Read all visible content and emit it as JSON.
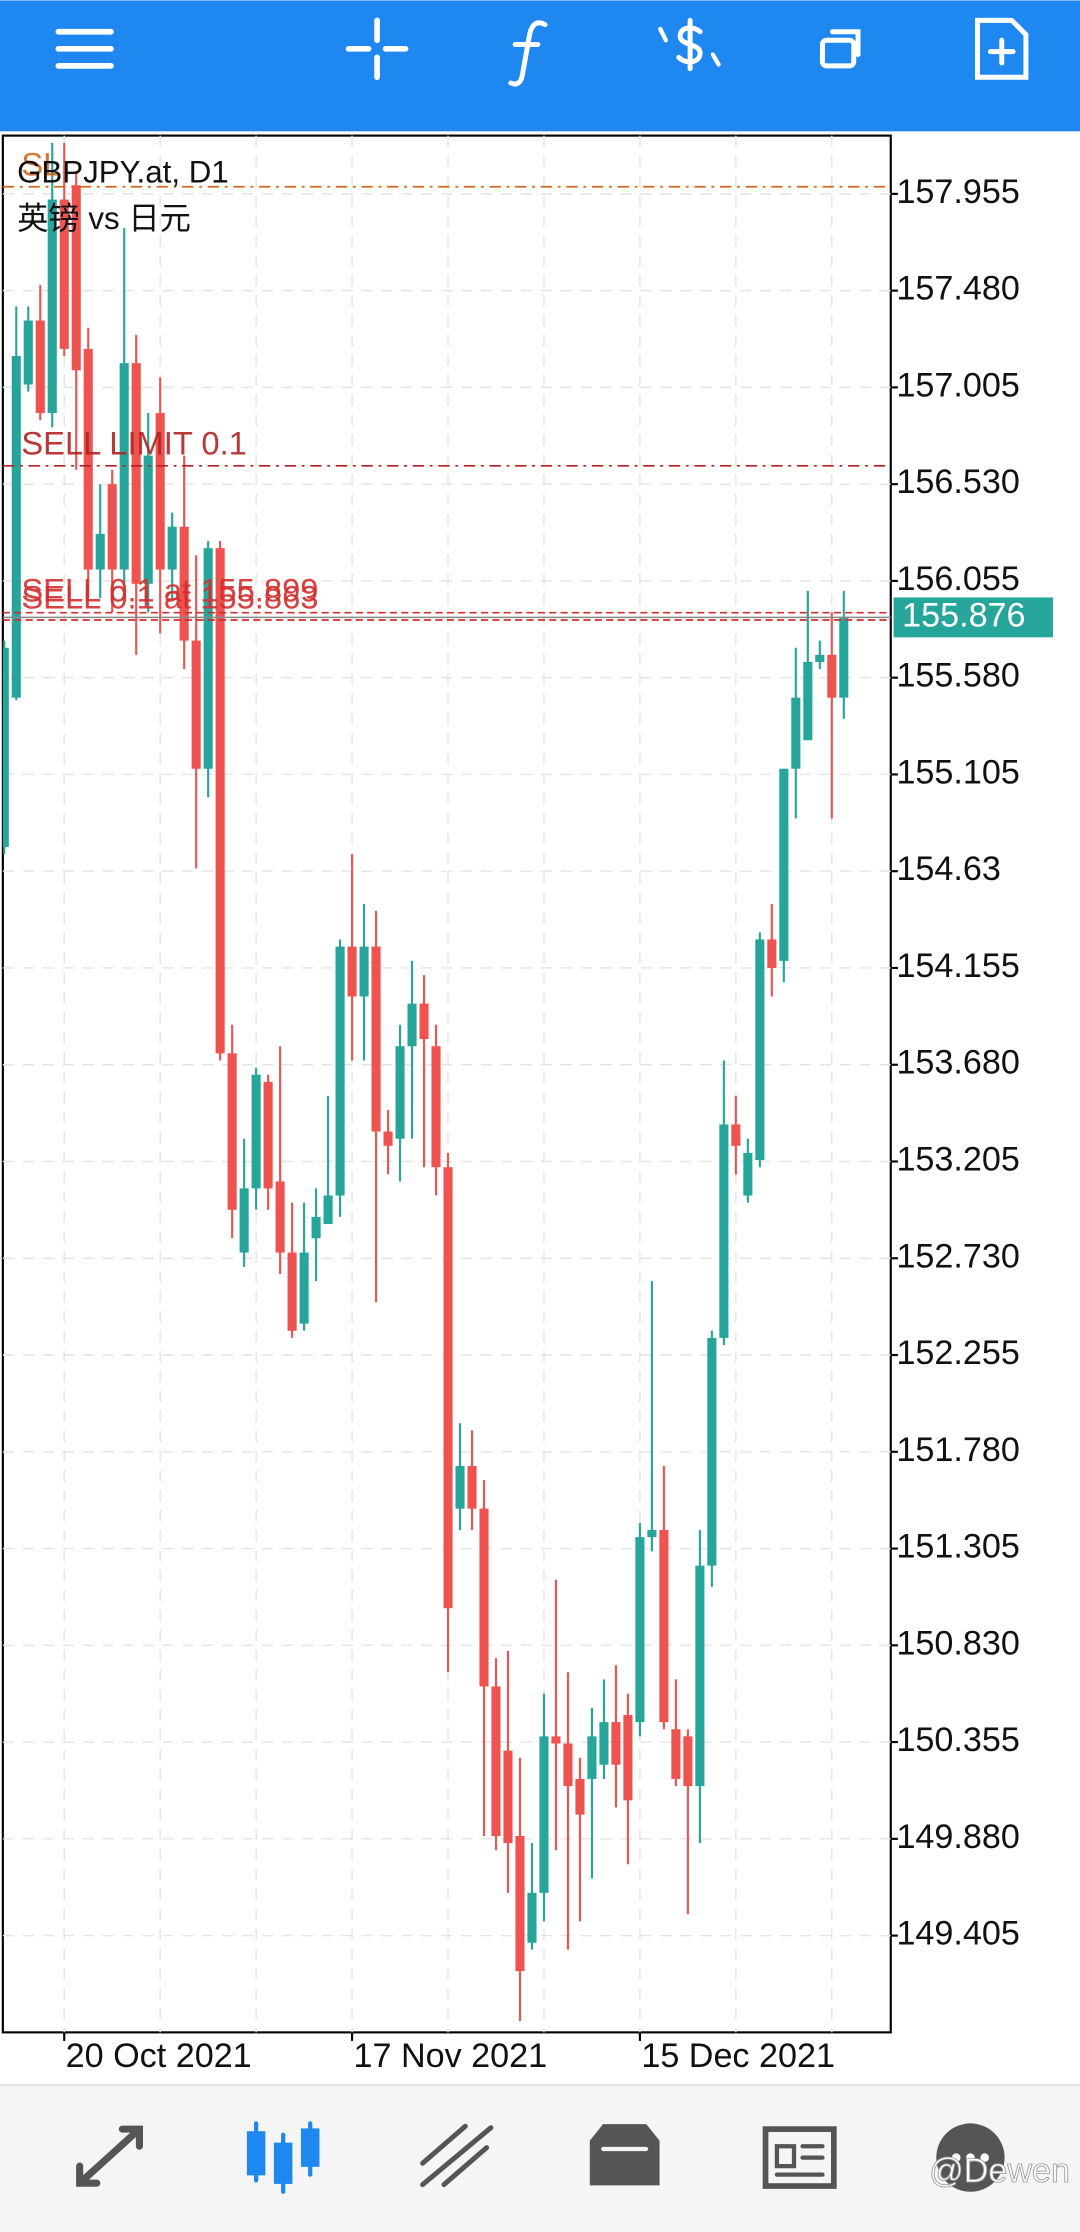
{
  "chart_data": {
    "type": "candlestick",
    "title": "GBPJPY.at, D1",
    "subtitle": "英镑 vs 日元",
    "categories": [
      null,
      null,
      null,
      null,
      null,
      "20 Oct 2021",
      null,
      null,
      null,
      null,
      null,
      null,
      null,
      null,
      null,
      null,
      null,
      null,
      null,
      null,
      null,
      null,
      null,
      null,
      null,
      null,
      null,
      null,
      null,
      "17 Nov 2021",
      null,
      null,
      null,
      null,
      null,
      null,
      null,
      null,
      null,
      null,
      null,
      null,
      null,
      null,
      null,
      null,
      null,
      null,
      null,
      null,
      null,
      null,
      null,
      "15 Dec 2021",
      null,
      null,
      null,
      null,
      null,
      null,
      null,
      null,
      null,
      null,
      null,
      null,
      null,
      null,
      null,
      null,
      null
    ],
    "open": [
      154.749,
      155.482,
      157.019,
      157.333,
      156.879,
      157.927,
      157.997,
      157.194,
      156.111,
      156.53,
      156.111,
      157.124,
      156.041,
      156.879,
      156.111,
      156.321,
      155.762,
      155.133,
      156.216,
      153.736,
      152.758,
      153.073,
      153.596,
      153.107,
      152.758,
      152.409,
      152.828,
      152.898,
      153.038,
      154.26,
      154.015,
      154.26,
      153.352,
      153.317,
      153.771,
      153.98,
      153.771,
      153.177,
      151.501,
      151.71,
      151.501,
      150.628,
      150.313,
      149.894,
      149.37,
      149.615,
      150.383,
      150.348,
      150.174,
      150.174,
      150.244,
      150.453,
      150.488,
      150.453,
      151.361,
      151.396,
      150.418,
      150.383,
      150.139,
      151.221,
      152.339,
      153.387,
      153.038,
      153.212,
      154.295,
      154.19,
      155.133,
      155.273,
      155.657,
      155.692,
      155.482
    ],
    "high": [
      155.762,
      157.403,
      157.403,
      157.508,
      158.206,
      158.206,
      158.067,
      157.298,
      156.53,
      156.6,
      157.787,
      157.263,
      156.879,
      157.054,
      156.39,
      156.67,
      156.181,
      156.251,
      156.251,
      153.876,
      153.317,
      153.666,
      153.631,
      153.771,
      153.003,
      153.003,
      153.073,
      153.527,
      154.295,
      154.714,
      154.469,
      154.435,
      153.457,
      153.876,
      154.19,
      154.12,
      153.876,
      153.247,
      151.92,
      151.885,
      151.641,
      150.767,
      150.802,
      150.278,
      149.859,
      150.593,
      151.152,
      150.698,
      150.278,
      150.523,
      150.663,
      150.733,
      150.593,
      151.431,
      152.618,
      151.71,
      150.663,
      150.418,
      151.396,
      152.374,
      153.701,
      153.527,
      153.317,
      154.33,
      154.469,
      155.133,
      155.727,
      156.006,
      155.762,
      155.901,
      156.006
    ],
    "low": [
      154.714,
      155.47,
      156.984,
      156.844,
      156.809,
      157.159,
      156.6,
      155.971,
      155.971,
      155.901,
      156.041,
      155.692,
      155.901,
      155.797,
      155.971,
      155.622,
      154.644,
      154.993,
      153.701,
      152.828,
      152.688,
      152.968,
      152.968,
      152.653,
      152.339,
      152.374,
      152.618,
      152.898,
      152.933,
      153.701,
      153.701,
      152.514,
      153.142,
      153.107,
      153.317,
      153.177,
      153.038,
      150.698,
      151.396,
      151.396,
      149.894,
      149.824,
      149.615,
      148.986,
      149.336,
      149.475,
      149.824,
      149.336,
      149.475,
      149.685,
      150.174,
      150.034,
      149.755,
      150.383,
      151.291,
      150.418,
      150.139,
      149.51,
      149.859,
      151.117,
      152.304,
      153.142,
      153.003,
      153.177,
      154.015,
      154.085,
      154.889,
      155.273,
      155.622,
      154.889,
      155.378
    ],
    "close": [
      155.727,
      157.159,
      157.333,
      156.879,
      157.927,
      157.194,
      157.089,
      156.111,
      156.286,
      156.111,
      157.124,
      156.041,
      156.67,
      156.111,
      156.321,
      155.762,
      155.133,
      156.216,
      153.736,
      152.968,
      153.073,
      153.631,
      153.073,
      152.758,
      152.374,
      152.758,
      152.933,
      153.038,
      154.26,
      154.015,
      154.26,
      153.352,
      153.282,
      153.771,
      153.98,
      153.806,
      153.177,
      151.012,
      151.71,
      151.501,
      150.628,
      149.894,
      149.859,
      149.231,
      149.615,
      150.383,
      150.348,
      150.139,
      149.999,
      150.383,
      150.453,
      150.244,
      150.069,
      151.361,
      151.396,
      150.453,
      150.174,
      150.139,
      151.221,
      152.339,
      153.387,
      153.282,
      153.247,
      154.295,
      154.155,
      155.133,
      155.482,
      155.657,
      155.692,
      155.482,
      155.876
    ],
    "up_color": "#26a69a",
    "down_color": "#ef5350",
    "ylim": [
      148.93,
      158.241
    ],
    "yticks": [
      157.955,
      {
        "value": 157.48,
        "label": "157.480"
      },
      157.005,
      {
        "value": 156.53,
        "label": "156.530"
      },
      156.055,
      {
        "value": 155.58,
        "label": "155.580"
      },
      155.105,
      154.63,
      154.155,
      {
        "value": 153.68,
        "label": "153.680"
      },
      153.205,
      {
        "value": 152.73,
        "label": "152.730"
      },
      152.255,
      {
        "value": 151.78,
        "label": "151.780"
      },
      151.305,
      {
        "value": 150.83,
        "label": "150.830"
      },
      150.355,
      {
        "value": 149.88,
        "label": "149.880"
      },
      149.405
    ],
    "grid": true,
    "current_price": 155.876,
    "levels": [
      {
        "label": "SL",
        "value": 157.99,
        "color": "#d2691e"
      },
      {
        "label": "SELL LIMIT 0.1",
        "value": 156.62,
        "color": "#b22222"
      },
      {
        "label": "SELL 0.1 at 155.863",
        "value": 155.863,
        "color": "#d32f2f"
      },
      {
        "label": "SELL 0.1 at 155.899",
        "value": 155.899,
        "color": "#d32f2f"
      }
    ]
  },
  "watermark": "@Dewen"
}
